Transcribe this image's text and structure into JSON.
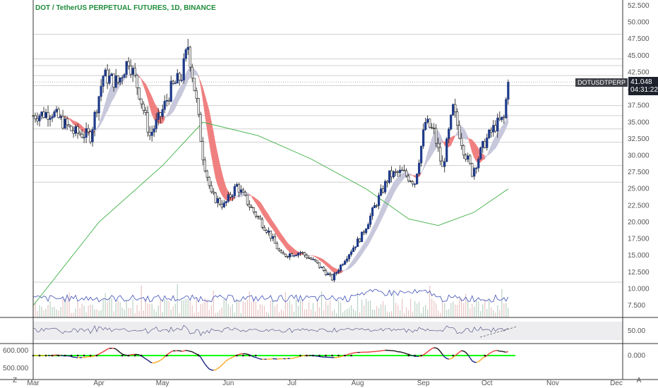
{
  "header": {
    "title": "DOT / TetherUS PERPETUAL FUTURES, 1D, BINANCE"
  },
  "price_tag": {
    "symbol": "DOTUSDTPERP",
    "last": "41.048",
    "countdown": "04:31:22"
  },
  "corner": {
    "left": "Z",
    "right": "A"
  },
  "colors": {
    "up": "#1e3a8a",
    "down": "#222222",
    "ribbon_up": "#c8c8dc",
    "ribbon_down": "#f08080",
    "ma": "#3cb043",
    "volume": "#3f51b5",
    "accent": "#1e8c3a"
  },
  "chart_data": [
    {
      "type": "candlestick",
      "title": "DOT / TetherUS PERPETUAL FUTURES, 1D, BINANCE",
      "x_ticks": [
        "Mar",
        "Apr",
        "May",
        "Jun",
        "Jul",
        "Aug",
        "Sep",
        "Oct",
        "Nov",
        "Dec"
      ],
      "y_ticks": [
        "52.500",
        "50.000",
        "47.500",
        "45.000",
        "42.500",
        "40.000",
        "37.500",
        "35.000",
        "32.500",
        "30.000",
        "27.500",
        "25.000",
        "22.500",
        "20.000",
        "17.500",
        "15.000",
        "12.500",
        "10.000",
        "7.500"
      ],
      "ylim": [
        6,
        53
      ],
      "last_price": 41.048,
      "close_series": [
        {
          "x": "2021-03-01",
          "close": 36.0
        },
        {
          "x": "2021-03-10",
          "close": 36.5
        },
        {
          "x": "2021-03-20",
          "close": 33.5
        },
        {
          "x": "2021-03-28",
          "close": 33.0
        },
        {
          "x": "2021-04-03",
          "close": 42.0
        },
        {
          "x": "2021-04-10",
          "close": 41.0
        },
        {
          "x": "2021-04-15",
          "close": 44.5
        },
        {
          "x": "2021-04-20",
          "close": 39.5
        },
        {
          "x": "2021-04-25",
          "close": 33.0
        },
        {
          "x": "2021-04-30",
          "close": 36.0
        },
        {
          "x": "2021-05-05",
          "close": 40.0
        },
        {
          "x": "2021-05-10",
          "close": 42.0
        },
        {
          "x": "2021-05-13",
          "close": 46.5
        },
        {
          "x": "2021-05-17",
          "close": 38.0
        },
        {
          "x": "2021-05-20",
          "close": 30.0
        },
        {
          "x": "2021-05-24",
          "close": 24.0
        },
        {
          "x": "2021-05-30",
          "close": 22.5
        },
        {
          "x": "2021-06-05",
          "close": 25.5
        },
        {
          "x": "2021-06-12",
          "close": 22.0
        },
        {
          "x": "2021-06-20",
          "close": 18.5
        },
        {
          "x": "2021-06-26",
          "close": 15.0
        },
        {
          "x": "2021-07-05",
          "close": 15.5
        },
        {
          "x": "2021-07-12",
          "close": 14.0
        },
        {
          "x": "2021-07-20",
          "close": 11.5
        },
        {
          "x": "2021-07-26",
          "close": 14.5
        },
        {
          "x": "2021-08-03",
          "close": 18.0
        },
        {
          "x": "2021-08-10",
          "close": 23.0
        },
        {
          "x": "2021-08-16",
          "close": 27.0
        },
        {
          "x": "2021-08-22",
          "close": 27.5
        },
        {
          "x": "2021-08-28",
          "close": 26.0
        },
        {
          "x": "2021-09-02",
          "close": 35.0
        },
        {
          "x": "2021-09-06",
          "close": 33.5
        },
        {
          "x": "2021-09-10",
          "close": 28.0
        },
        {
          "x": "2021-09-15",
          "close": 37.0
        },
        {
          "x": "2021-09-20",
          "close": 31.0
        },
        {
          "x": "2021-09-24",
          "close": 27.5
        },
        {
          "x": "2021-09-30",
          "close": 32.0
        },
        {
          "x": "2021-10-05",
          "close": 34.5
        },
        {
          "x": "2021-10-09",
          "close": 35.5
        },
        {
          "x": "2021-10-11",
          "close": 41.048
        }
      ],
      "ma_series": [
        {
          "x": "2021-03-01",
          "value": 7.5
        },
        {
          "x": "2021-04-01",
          "value": 20.0
        },
        {
          "x": "2021-05-01",
          "value": 28.5
        },
        {
          "x": "2021-05-20",
          "value": 35.0
        },
        {
          "x": "2021-06-15",
          "value": 33.0
        },
        {
          "x": "2021-07-10",
          "value": 29.5
        },
        {
          "x": "2021-08-05",
          "value": 25.0
        },
        {
          "x": "2021-08-25",
          "value": 20.5
        },
        {
          "x": "2021-09-08",
          "value": 19.5
        },
        {
          "x": "2021-09-25",
          "value": 21.5
        },
        {
          "x": "2021-10-11",
          "value": 25.0
        }
      ]
    },
    {
      "type": "area",
      "name": "rsi",
      "y_ticks": [
        "50.00"
      ],
      "ylim": [
        25,
        75
      ]
    },
    {
      "type": "line",
      "name": "oscillator",
      "y_ticks": [
        "600.000",
        "500.000",
        "0.000"
      ]
    }
  ]
}
